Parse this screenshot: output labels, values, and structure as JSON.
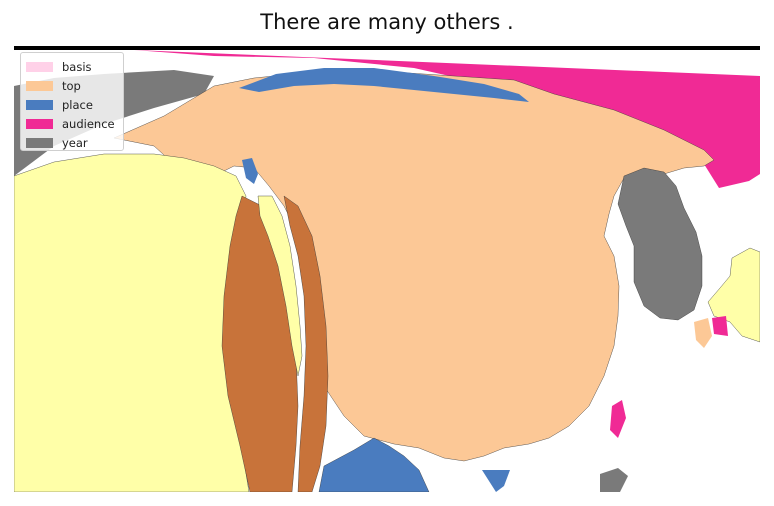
{
  "title": "There are many others .",
  "legend": {
    "items": [
      {
        "label": "basis",
        "color": "#ffd1e8"
      },
      {
        "label": "top",
        "color": "#fcc896"
      },
      {
        "label": "place",
        "color": "#4a7cbf"
      },
      {
        "label": "audience",
        "color": "#f02a95"
      },
      {
        "label": "year",
        "color": "#7a7a7a"
      }
    ]
  },
  "regions": {
    "yellow_color": "#ffffa8",
    "brown_color": "#c8733a"
  }
}
